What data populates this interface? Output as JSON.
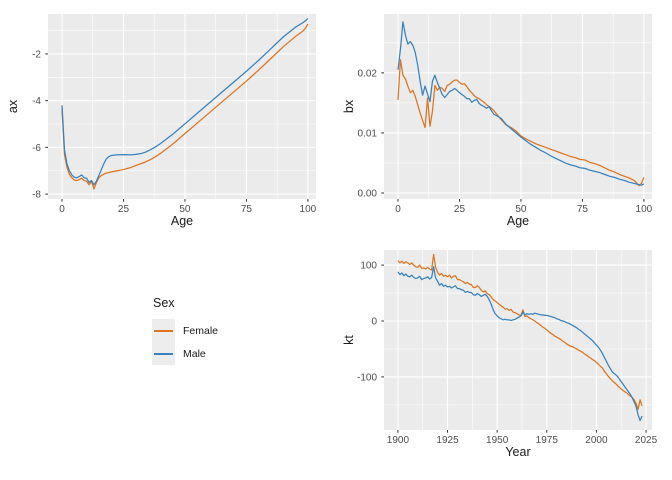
{
  "figure": {
    "background": "#ffffff",
    "panel_background": "#ebebeb",
    "grid_color": "#ffffff",
    "tick_mark_color": "#333333",
    "tick_label_color": "#4d4d4d",
    "axis_title_color": "#1a1a1a"
  },
  "legend": {
    "title": "Sex",
    "items": [
      {
        "label": "Female",
        "color": "#dd7420"
      },
      {
        "label": "Male",
        "color": "#3781bd"
      }
    ]
  },
  "chart_data": [
    {
      "id": "ax",
      "type": "line",
      "xlabel": "Age",
      "ylabel": "ax",
      "xlim": [
        -5.7,
        103.3
      ],
      "ylim": [
        -8.21,
        -0.29
      ],
      "grid": "on",
      "legend_position": "none",
      "x_ticks": [
        {
          "v": 0,
          "label": "0"
        },
        {
          "v": 25,
          "label": "25"
        },
        {
          "v": 50,
          "label": "50"
        },
        {
          "v": 75,
          "label": "75"
        },
        {
          "v": 100,
          "label": "100"
        }
      ],
      "y_ticks": [
        {
          "v": -2,
          "label": "-2"
        },
        {
          "v": -4,
          "label": "-4"
        },
        {
          "v": -6,
          "label": "-6"
        },
        {
          "v": -8,
          "label": "-8"
        }
      ],
      "x_minor": [
        12.5,
        37.5,
        62.5,
        87.5
      ],
      "y_minor": [
        -1,
        -3,
        -5,
        -7
      ],
      "series": [
        {
          "name": "Female",
          "color": "#dd7420",
          "x": [
            0,
            1,
            2,
            3,
            4,
            5,
            6,
            7,
            8,
            9,
            10,
            11,
            12,
            13,
            14,
            15,
            16,
            17,
            18,
            19,
            20,
            22,
            25,
            28,
            30,
            32,
            34,
            36,
            38,
            40,
            45,
            50,
            55,
            60,
            65,
            70,
            75,
            80,
            85,
            90,
            95,
            98,
            99,
            100
          ],
          "y": [
            -4.35,
            -6.3,
            -6.85,
            -7.15,
            -7.3,
            -7.4,
            -7.42,
            -7.38,
            -7.32,
            -7.42,
            -7.45,
            -7.6,
            -7.45,
            -7.78,
            -7.5,
            -7.3,
            -7.2,
            -7.15,
            -7.1,
            -7.08,
            -7.05,
            -7.01,
            -6.95,
            -6.86,
            -6.78,
            -6.7,
            -6.62,
            -6.52,
            -6.4,
            -6.26,
            -5.86,
            -5.41,
            -4.96,
            -4.51,
            -4.06,
            -3.61,
            -3.16,
            -2.69,
            -2.19,
            -1.69,
            -1.25,
            -1.02,
            -0.9,
            -0.72
          ]
        },
        {
          "name": "Male",
          "color": "#3781bd",
          "x": [
            0,
            1,
            2,
            3,
            4,
            5,
            6,
            7,
            8,
            9,
            10,
            11,
            12,
            13,
            14,
            15,
            16,
            17,
            18,
            19,
            20,
            22,
            25,
            28,
            30,
            32,
            34,
            36,
            38,
            40,
            45,
            50,
            55,
            60,
            65,
            70,
            75,
            80,
            85,
            90,
            95,
            98,
            99,
            100
          ],
          "y": [
            -4.2,
            -6.1,
            -6.7,
            -7.0,
            -7.18,
            -7.28,
            -7.3,
            -7.25,
            -7.18,
            -7.3,
            -7.32,
            -7.5,
            -7.42,
            -7.6,
            -7.45,
            -7.2,
            -6.95,
            -6.7,
            -6.5,
            -6.4,
            -6.35,
            -6.32,
            -6.31,
            -6.32,
            -6.3,
            -6.27,
            -6.2,
            -6.1,
            -5.98,
            -5.84,
            -5.44,
            -4.99,
            -4.54,
            -4.09,
            -3.64,
            -3.19,
            -2.74,
            -2.27,
            -1.77,
            -1.27,
            -0.85,
            -0.66,
            -0.58,
            -0.48
          ]
        }
      ]
    },
    {
      "id": "bx",
      "type": "line",
      "xlabel": "Age",
      "ylabel": "bx",
      "xlim": [
        -5.7,
        103.3
      ],
      "ylim": [
        -0.001,
        0.0298
      ],
      "grid": "on",
      "legend_position": "none",
      "x_ticks": [
        {
          "v": 0,
          "label": "0"
        },
        {
          "v": 25,
          "label": "25"
        },
        {
          "v": 50,
          "label": "50"
        },
        {
          "v": 75,
          "label": "75"
        },
        {
          "v": 100,
          "label": "100"
        }
      ],
      "y_ticks": [
        {
          "v": 0,
          "label": "0.00"
        },
        {
          "v": 0.01,
          "label": "0.01"
        },
        {
          "v": 0.02,
          "label": "0.02"
        }
      ],
      "x_minor": [
        12.5,
        37.5,
        62.5,
        87.5
      ],
      "y_minor": [
        0.005,
        0.015,
        0.025
      ],
      "series": [
        {
          "name": "Female",
          "color": "#dd7420",
          "x": [
            0,
            1,
            2,
            3,
            4,
            5,
            6,
            7,
            8,
            9,
            10,
            11,
            12,
            13,
            14,
            15,
            16,
            17,
            18,
            19,
            20,
            21,
            22,
            23,
            24,
            25,
            26,
            27,
            28,
            29,
            30,
            31,
            32,
            33,
            34,
            35,
            36,
            37,
            38,
            39,
            40,
            42,
            44,
            46,
            48,
            50,
            52,
            54,
            56,
            58,
            60,
            62,
            64,
            66,
            68,
            70,
            72,
            74,
            76,
            78,
            80,
            82,
            84,
            86,
            88,
            90,
            92,
            94,
            96,
            97,
            98,
            99,
            100
          ],
          "y": [
            0.0155,
            0.0222,
            0.0196,
            0.019,
            0.0178,
            0.0167,
            0.0171,
            0.0161,
            0.0147,
            0.0133,
            0.0121,
            0.0109,
            0.0158,
            0.0111,
            0.0136,
            0.0179,
            0.0171,
            0.0176,
            0.0174,
            0.0169,
            0.0179,
            0.0181,
            0.0185,
            0.0188,
            0.0188,
            0.0184,
            0.0181,
            0.0182,
            0.0177,
            0.0171,
            0.0167,
            0.0162,
            0.0159,
            0.0157,
            0.0154,
            0.0151,
            0.0147,
            0.0144,
            0.0141,
            0.0137,
            0.0132,
            0.0122,
            0.0113,
            0.0109,
            0.0103,
            0.0095,
            0.009,
            0.0086,
            0.0082,
            0.0079,
            0.0076,
            0.0073,
            0.007,
            0.0067,
            0.0064,
            0.0061,
            0.0059,
            0.0056,
            0.0055,
            0.0051,
            0.0049,
            0.0046,
            0.0042,
            0.0038,
            0.0035,
            0.0031,
            0.0028,
            0.0025,
            0.0021,
            0.0017,
            0.0012,
            0.0016,
            0.0026
          ]
        },
        {
          "name": "Male",
          "color": "#3781bd",
          "x": [
            0,
            1,
            2,
            3,
            4,
            5,
            6,
            7,
            8,
            9,
            10,
            11,
            12,
            13,
            14,
            15,
            16,
            17,
            18,
            19,
            20,
            21,
            22,
            23,
            24,
            25,
            26,
            27,
            28,
            29,
            30,
            31,
            32,
            33,
            34,
            35,
            36,
            37,
            38,
            39,
            40,
            42,
            44,
            46,
            48,
            50,
            52,
            54,
            56,
            58,
            60,
            62,
            64,
            66,
            68,
            70,
            72,
            74,
            76,
            78,
            80,
            82,
            84,
            86,
            88,
            90,
            92,
            94,
            96,
            97,
            98,
            99,
            100
          ],
          "y": [
            0.0205,
            0.024,
            0.0285,
            0.0263,
            0.0248,
            0.0252,
            0.0246,
            0.0234,
            0.0213,
            0.0186,
            0.0163,
            0.0178,
            0.0165,
            0.0152,
            0.0186,
            0.0196,
            0.0184,
            0.0174,
            0.0164,
            0.0159,
            0.0164,
            0.0169,
            0.0171,
            0.0174,
            0.0171,
            0.0167,
            0.0164,
            0.0161,
            0.0157,
            0.0157,
            0.0151,
            0.0154,
            0.0156,
            0.0149,
            0.0146,
            0.0144,
            0.0141,
            0.0144,
            0.0137,
            0.0131,
            0.0129,
            0.0124,
            0.0114,
            0.0107,
            0.01,
            0.0093,
            0.0087,
            0.0081,
            0.0076,
            0.0071,
            0.0067,
            0.0062,
            0.0058,
            0.0054,
            0.005,
            0.0047,
            0.0045,
            0.0042,
            0.0041,
            0.0038,
            0.0036,
            0.0034,
            0.0031,
            0.0028,
            0.0026,
            0.0023,
            0.0021,
            0.0018,
            0.0016,
            0.0015,
            0.0014,
            0.0013,
            0.0015
          ]
        }
      ]
    },
    {
      "id": "kt",
      "type": "line",
      "xlabel": "Year",
      "ylabel": "kt",
      "xlim": [
        1893,
        2028
      ],
      "ylim": [
        -195,
        127
      ],
      "grid": "on",
      "legend_position": "none",
      "x_ticks": [
        {
          "v": 1900,
          "label": "1900"
        },
        {
          "v": 1925,
          "label": "1925"
        },
        {
          "v": 1950,
          "label": "1950"
        },
        {
          "v": 1975,
          "label": "1975"
        },
        {
          "v": 2000,
          "label": "2000"
        },
        {
          "v": 2025,
          "label": "2025"
        }
      ],
      "y_ticks": [
        {
          "v": 100,
          "label": "100"
        },
        {
          "v": 0,
          "label": "0"
        },
        {
          "v": -100,
          "label": "-100"
        }
      ],
      "x_minor": [
        1912.5,
        1937.5,
        1962.5,
        1987.5,
        2012.5
      ],
      "y_minor": [
        50,
        -50,
        -150
      ],
      "series": [
        {
          "name": "Female",
          "color": "#dd7420",
          "x_seq": {
            "from": 1900,
            "to": 2023
          },
          "y": [
            108,
            104,
            107,
            103,
            106,
            104,
            101,
            104,
            100,
            97,
            96,
            100,
            94,
            95,
            93,
            96,
            93,
            91,
            119,
            96,
            87,
            82,
            85,
            80,
            82,
            79,
            82,
            77,
            80,
            81,
            74,
            74,
            72,
            70,
            67,
            69,
            66,
            65,
            60,
            60,
            63,
            60,
            55,
            52,
            54,
            49,
            47,
            43,
            38,
            36,
            33,
            30,
            27,
            25,
            21,
            22,
            19,
            21,
            16,
            15,
            13,
            11,
            10,
            20,
            8,
            9,
            6,
            4,
            2,
            0,
            -3,
            -5,
            -8,
            -11,
            -13,
            -16,
            -19,
            -22,
            -24,
            -27,
            -29,
            -31,
            -33,
            -36,
            -38,
            -41,
            -43,
            -45,
            -46,
            -48,
            -50,
            -52,
            -54,
            -56,
            -59,
            -61,
            -64,
            -66,
            -69,
            -71,
            -74,
            -77,
            -81,
            -84,
            -90,
            -94,
            -99,
            -103,
            -107,
            -110,
            -113,
            -117,
            -120,
            -123,
            -126,
            -128,
            -131,
            -134,
            -137,
            -141,
            -148,
            -158,
            -141,
            -152
          ]
        },
        {
          "name": "Male",
          "color": "#3781bd",
          "x_seq": {
            "from": 1900,
            "to": 2023
          },
          "y": [
            88,
            83,
            86,
            81,
            84,
            80,
            79,
            82,
            78,
            76,
            77,
            80,
            74,
            76,
            77,
            79,
            75,
            78,
            97,
            77,
            71,
            64,
            67,
            62,
            64,
            61,
            62,
            59,
            61,
            63,
            58,
            58,
            56,
            55,
            51,
            53,
            51,
            51,
            47,
            46,
            49,
            47,
            44,
            46,
            48,
            44,
            38,
            30,
            20,
            13,
            9,
            6,
            4,
            2,
            3,
            2,
            2,
            1,
            2,
            3,
            5,
            7,
            9,
            16,
            11,
            13,
            12,
            13,
            12,
            14,
            13,
            12,
            11,
            11,
            10,
            10,
            9,
            8,
            7,
            6,
            4,
            3,
            1,
            0,
            -1,
            -3,
            -4,
            -6,
            -8,
            -10,
            -12,
            -15,
            -17,
            -20,
            -23,
            -26,
            -29,
            -32,
            -35,
            -39,
            -43,
            -47,
            -52,
            -58,
            -65,
            -72,
            -79,
            -85,
            -91,
            -94,
            -97,
            -101,
            -106,
            -111,
            -116,
            -121,
            -126,
            -131,
            -137,
            -145,
            -153,
            -168,
            -178,
            -170
          ]
        }
      ]
    }
  ]
}
